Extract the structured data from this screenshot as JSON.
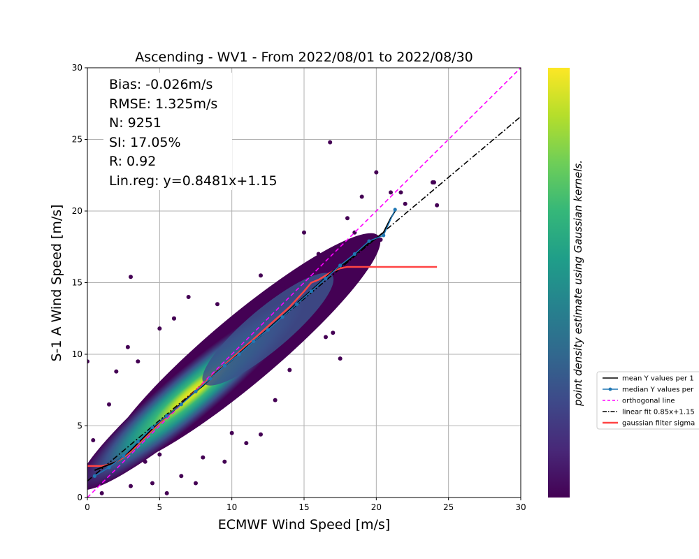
{
  "chart_data": {
    "type": "scatter",
    "title": "Ascending - WV1 - From 2022/08/01 to 2022/08/30",
    "xlabel": "ECMWF Wind Speed [m/s]",
    "ylabel": "S-1 A Wind Speed [m/s]",
    "xlim": [
      0,
      30
    ],
    "ylim": [
      0,
      30
    ],
    "xticks": [
      "0",
      "5",
      "10",
      "15",
      "20",
      "25",
      "30"
    ],
    "yticks": [
      "0",
      "5",
      "10",
      "15",
      "20",
      "25",
      "30"
    ],
    "grid": true,
    "colorbar": {
      "label": "point density estimate using Gaussian kernels.",
      "colormap": [
        "#440154",
        "#482878",
        "#3e4989",
        "#31688e",
        "#26828e",
        "#1f9e89",
        "#35b779",
        "#6ece58",
        "#b5de2b",
        "#fde725"
      ]
    },
    "stats": [
      "Bias: -0.026m/s",
      "RMSE: 1.325m/s",
      "N: 9251",
      "SI: 17.05%",
      "R: 0.92",
      "Lin.reg: y=0.8481x+1.15"
    ],
    "legend": {
      "placement": "right-outside",
      "entries": [
        {
          "label": "mean Y values per 1",
          "color": "#000000",
          "style": "solid"
        },
        {
          "label": "median Y values per",
          "color": "#1f77b4",
          "style": "solid-dot"
        },
        {
          "label": "orthogonal line",
          "color": "#ff00ff",
          "style": "dashed"
        },
        {
          "label": "linear fit 0.85x+1.15",
          "color": "#000000",
          "style": "dashdot"
        },
        {
          "label": "gaussian filter sigma",
          "color": "#ff4444",
          "style": "solid"
        }
      ]
    },
    "series": [
      {
        "name": "mean Y values per 1",
        "x": [
          0.5,
          1,
          2,
          3,
          4,
          5,
          6,
          7,
          8,
          9,
          10,
          11,
          12,
          13,
          14,
          15,
          16,
          17,
          18,
          19,
          20,
          20.5,
          21,
          21.3
        ],
        "y": [
          1.9,
          2.1,
          2.5,
          3.3,
          4.3,
          5.3,
          6.1,
          7.0,
          7.8,
          8.8,
          9.6,
          10.5,
          11.3,
          12.2,
          13.1,
          14.0,
          14.9,
          15.8,
          16.5,
          17.4,
          18.1,
          18.5,
          19.5,
          20.0
        ]
      },
      {
        "name": "median Y values per",
        "x": [
          0.5,
          1.5,
          2.5,
          3.5,
          4.5,
          5.5,
          6.5,
          7.5,
          8.5,
          9.5,
          10.5,
          11.5,
          12.5,
          13.5,
          14.5,
          15.5,
          16.5,
          17.5,
          18.5,
          19.5,
          20.5,
          21.3
        ],
        "y": [
          1.5,
          2.1,
          2.9,
          3.9,
          4.9,
          5.7,
          6.5,
          7.4,
          8.3,
          9.2,
          10.0,
          10.9,
          11.7,
          12.6,
          13.5,
          14.4,
          15.3,
          16.2,
          17.0,
          17.9,
          18.3,
          20.1
        ]
      },
      {
        "name": "gaussian filter sigma",
        "x": [
          0,
          1,
          1.5,
          2,
          2.5,
          3,
          4,
          5,
          6,
          7,
          8,
          9,
          10,
          11,
          12,
          13,
          14,
          15,
          15.5,
          16,
          16.5,
          17,
          17.5,
          18,
          19,
          20,
          22,
          24.2
        ],
        "y": [
          2.2,
          2.2,
          2.3,
          2.5,
          2.8,
          3.2,
          4.2,
          5.2,
          6.1,
          7.0,
          7.9,
          8.8,
          9.7,
          10.6,
          11.5,
          12.4,
          13.3,
          14.4,
          15.0,
          15.2,
          15.5,
          15.8,
          16.0,
          16.1,
          16.1,
          16.1,
          16.1,
          16.1
        ]
      }
    ],
    "orthogonal_line": {
      "x": [
        0,
        30
      ],
      "y": [
        0,
        30
      ]
    },
    "linear_fit": {
      "slope": 0.8481,
      "intercept": 1.15
    },
    "outliers": {
      "x": [
        0.0,
        0.4,
        1.0,
        1.5,
        2.0,
        2.8,
        3.0,
        3.5,
        4.0,
        4.5,
        5.0,
        5.5,
        6.0,
        6.5,
        7.0,
        8.0,
        9.0,
        10.0,
        11.0,
        12.0,
        13.0,
        14.0,
        15.0,
        16.0,
        17.0,
        18.0,
        19.0,
        20.0,
        21.0,
        22.0,
        24.0,
        24.2,
        3.0,
        5.0,
        6.0,
        7.5,
        9.5,
        12.0,
        13.5,
        16.5,
        17.5,
        18.5,
        20.3,
        21.7,
        23.9,
        16.8
      ],
      "y": [
        9.5,
        4.0,
        0.3,
        6.5,
        8.8,
        10.5,
        15.4,
        9.5,
        2.5,
        1.0,
        11.8,
        0.3,
        12.5,
        1.5,
        14.0,
        2.8,
        13.5,
        4.5,
        3.8,
        15.5,
        6.8,
        8.9,
        18.5,
        17.0,
        11.5,
        19.5,
        21.0,
        22.7,
        21.3,
        20.5,
        22.0,
        20.4,
        0.8,
        3.0,
        12.5,
        1.0,
        2.5,
        4.4,
        14.8,
        11.2,
        9.7,
        18.5,
        18.0,
        21.3,
        22.0,
        24.8
      ]
    }
  }
}
